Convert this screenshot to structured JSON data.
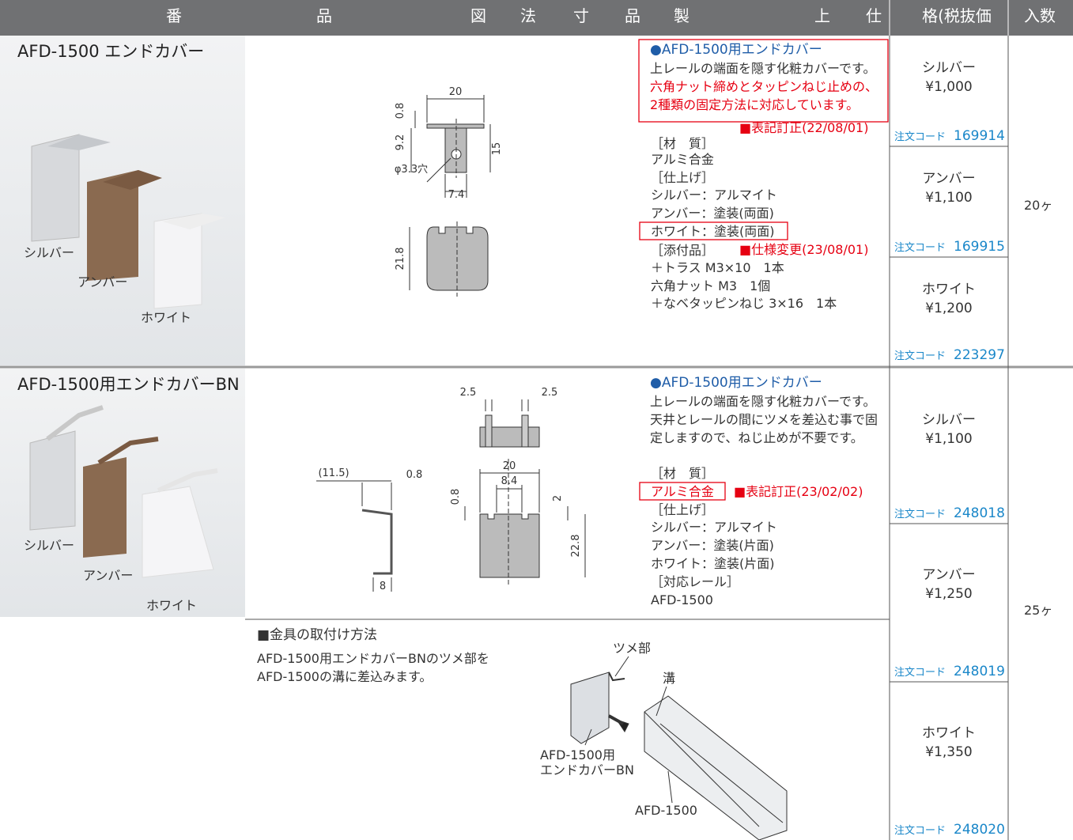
{
  "header": {
    "cells": [
      "番",
      "品",
      "図",
      "法",
      "寸",
      "品",
      "製",
      "上",
      "仕",
      "格(税抜価",
      "入数"
    ]
  },
  "products": [
    {
      "name": "AFD-1500 エンドカバー",
      "photo_labels": [
        "シルバー",
        "アンバー",
        "ホワイト"
      ],
      "drawing_labels": [
        "20",
        "0.8",
        "9.2",
        "15",
        "φ3.3穴",
        "7.4",
        "21.8"
      ],
      "spec": {
        "title": "●AFD-1500用エンドカバー",
        "description": [
          "上レールの端面を隠す化粧カバーです。",
          "六角ナット締めとタッピンねじ止めの、",
          "2種類の固定方法に対応しています。"
        ],
        "notes": [
          "■表記訂正(22/08/01)",
          "■仕様変更(23/08/01)"
        ],
        "lines": [
          "［材　質］",
          "アルミ合金",
          "［仕上げ］",
          "シルバー：アルマイト",
          "アンバー：塗装(両面)",
          "ホワイト：塗装(両面)",
          "［添付品］",
          "＋トラス M3×10　1本",
          "六角ナット M3　1個",
          "＋なベタッピンねじ 3×16　1本"
        ]
      },
      "prices": [
        {
          "color": "シルバー",
          "price": "¥1,000",
          "code_label": "注文コード",
          "code": "169914"
        },
        {
          "color": "アンバー",
          "price": "¥1,100",
          "code_label": "注文コード",
          "code": "169915"
        },
        {
          "color": "ホワイト",
          "price": "¥1,200",
          "code_label": "注文コード",
          "code": "223297"
        }
      ],
      "quantity": "20ヶ"
    },
    {
      "name": "AFD-1500用エンドカバーBN",
      "photo_labels": [
        "シルバー",
        "アンバー",
        "ホワイト"
      ],
      "drawing_labels": [
        "2.5",
        "2.5",
        "(11.5)",
        "0.8",
        "20",
        "8.4",
        "0.8",
        "2",
        "22.8",
        "8"
      ],
      "spec": {
        "title": "●AFD-1500用エンドカバー",
        "description": [
          "上レールの端面を隠す化粧カバーです。",
          "天井とレールの間にツメを差込む事で固",
          "定しますので、ねじ止めが不要です。"
        ],
        "notes": [
          "■表記訂正(23/02/02)"
        ],
        "lines": [
          "［材　質］",
          "アルミ合金",
          "［仕上げ］",
          "シルバー：アルマイト",
          "アンバー：塗装(片面)",
          "ホワイト：塗装(片面)",
          "［対応レール］",
          "AFD-1500"
        ]
      },
      "prices": [
        {
          "color": "シルバー",
          "price": "¥1,100",
          "code_label": "注文コード",
          "code": "248018"
        },
        {
          "color": "アンバー",
          "price": "¥1,250",
          "code_label": "注文コード",
          "code": "248019"
        },
        {
          "color": "ホワイト",
          "price": "¥1,350",
          "code_label": "注文コード",
          "code": "248020"
        }
      ],
      "quantity": "25ヶ"
    }
  ],
  "install": {
    "title": "■金具の取付け方法",
    "text": [
      "AFD-1500用エンドカバーBNのツメ部を",
      "AFD-1500の溝に差込みます。"
    ],
    "labels": [
      "ツメ部",
      "溝",
      "AFD-1500用",
      "エンドカバーBN",
      "AFD-1500"
    ]
  }
}
